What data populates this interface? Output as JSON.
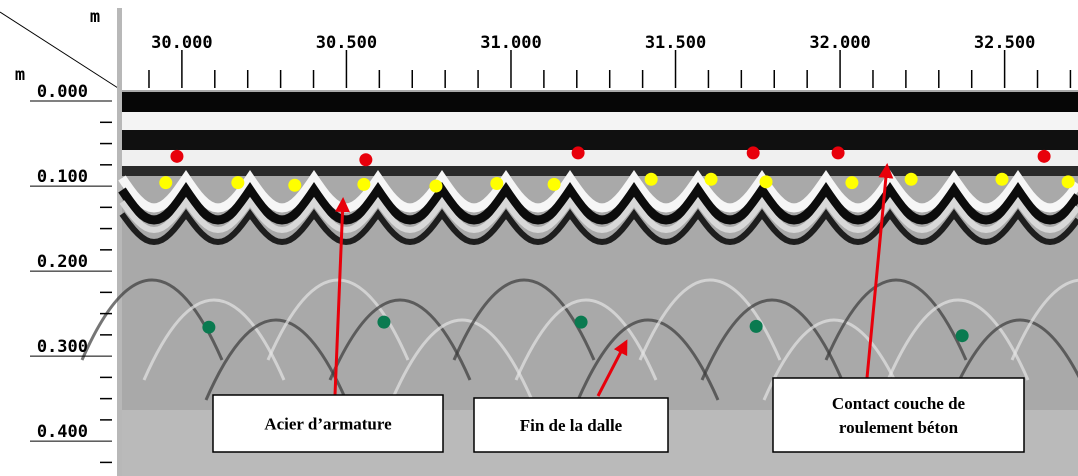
{
  "chart_data": {
    "type": "scatter",
    "xlabel": "m",
    "ylabel": "m",
    "xlim": [
      29.818,
      32.723
    ],
    "ylim": [
      -0.013,
      0.441
    ],
    "xticks": [
      {
        "value": 30,
        "label": "30.000"
      },
      {
        "value": 30.5,
        "label": "30.500"
      },
      {
        "value": 31,
        "label": "31.000"
      },
      {
        "value": 31.5,
        "label": "31.500"
      },
      {
        "value": 32,
        "label": "32.000"
      },
      {
        "value": 32.5,
        "label": "32.500"
      }
    ],
    "xminorticks": [
      29.9,
      30.1,
      30.2,
      30.3,
      30.4,
      30.6,
      30.7,
      30.8,
      30.9,
      31.1,
      31.2,
      31.3,
      31.4,
      31.6,
      31.7,
      31.8,
      31.9,
      32.1,
      32.2,
      32.3,
      32.4,
      32.6,
      32.7
    ],
    "yticks": [
      {
        "value": 0,
        "label": "0.000"
      },
      {
        "value": 0.1,
        "label": "0.100"
      },
      {
        "value": 0.2,
        "label": "0.200"
      },
      {
        "value": 0.3,
        "label": "0.300"
      },
      {
        "value": 0.4,
        "label": "0.400"
      }
    ],
    "yminorticks": [
      0.025,
      0.05,
      0.075,
      0.125,
      0.15,
      0.175,
      0.225,
      0.25,
      0.275,
      0.325,
      0.35,
      0.375,
      0.425
    ],
    "series": [
      {
        "color": "#e8000b",
        "x": [
          29.985,
          30.559,
          31.204,
          31.736,
          31.994,
          32.62
        ],
        "values": [
          0.065,
          0.069,
          0.061,
          0.061,
          0.061,
          0.065
        ]
      },
      {
        "color": "#ffff00",
        "x": [
          29.951,
          30.17,
          30.343,
          30.553,
          30.772,
          30.957,
          31.131,
          31.426,
          31.608,
          31.775,
          32.036,
          32.216,
          32.492,
          32.693
        ],
        "values": [
          0.096,
          0.096,
          0.099,
          0.098,
          0.1,
          0.097,
          0.098,
          0.092,
          0.092,
          0.095,
          0.096,
          0.092,
          0.092,
          0.095
        ]
      },
      {
        "color": "#0a7a50",
        "x": [
          30.082,
          30.614,
          31.213,
          31.745,
          32.371
        ],
        "values": [
          0.266,
          0.26,
          0.26,
          0.265,
          0.276
        ]
      }
    ],
    "annotations": [
      {
        "lines": [
          "Acier d’armature"
        ]
      },
      {
        "lines": [
          "Fin de la dalle"
        ]
      },
      {
        "lines": [
          "Contact couche de",
          "roulement béton"
        ]
      }
    ]
  }
}
